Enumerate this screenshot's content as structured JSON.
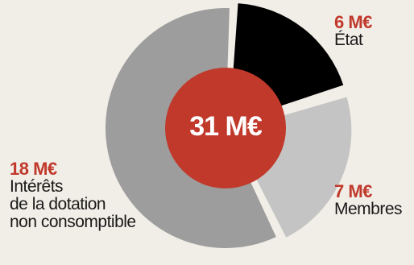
{
  "chart_data": {
    "type": "pie",
    "center_label": "31 M€",
    "slices": [
      {
        "value_label": "6 M€",
        "value": 6,
        "label": "État",
        "color": "#000000"
      },
      {
        "value_label": "7 M€",
        "value": 7,
        "label": "Membres",
        "color": "#c4c4c4"
      },
      {
        "value_label": "18 M€",
        "value": 18,
        "label_lines": [
          "Intérêts",
          "de la dotation",
          "non consomptible"
        ],
        "color": "#9d9d9d"
      }
    ],
    "colors": {
      "background": "#f1ede7",
      "center": "#c0392b",
      "value_text": "#c0392b"
    }
  }
}
